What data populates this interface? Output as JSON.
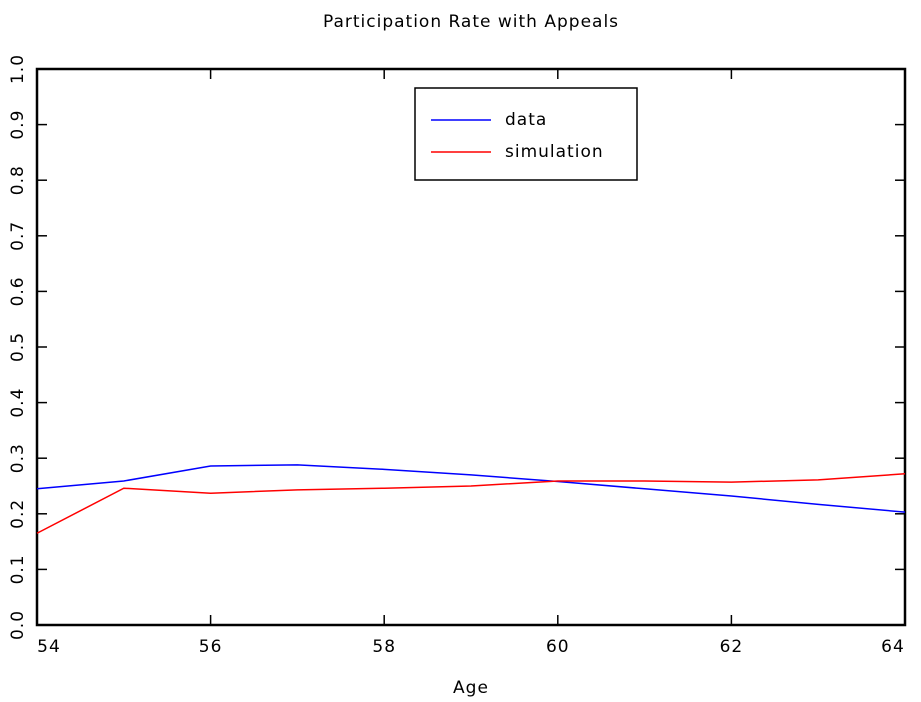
{
  "chart_data": {
    "type": "line",
    "title": "Participation Rate with Appeals",
    "x_label": "Age",
    "x": [
      54,
      55,
      56,
      57,
      58,
      59,
      60,
      61,
      62,
      63,
      64
    ],
    "series": [
      {
        "name": "data",
        "color": "#0000ff",
        "values": [
          0.245,
          0.259,
          0.286,
          0.288,
          0.28,
          0.27,
          0.258,
          0.245,
          0.232,
          0.217,
          0.203
        ]
      },
      {
        "name": "simulation",
        "color": "#ff0000",
        "values": [
          0.165,
          0.246,
          0.237,
          0.243,
          0.246,
          0.25,
          0.259,
          0.259,
          0.257,
          0.261,
          0.272
        ]
      }
    ],
    "xlim": [
      54,
      64
    ],
    "xticks": [
      54,
      56,
      58,
      60,
      62,
      64
    ],
    "ylim": [
      0,
      1
    ],
    "yticks": [
      {
        "value": 0,
        "label": "0.0"
      },
      0.1,
      0.2,
      0.3,
      0.4,
      0.5,
      0.6,
      0.7,
      0.8,
      0.9,
      {
        "value": 1,
        "label": "1.0"
      }
    ],
    "grid": false,
    "legend": "upper center"
  }
}
